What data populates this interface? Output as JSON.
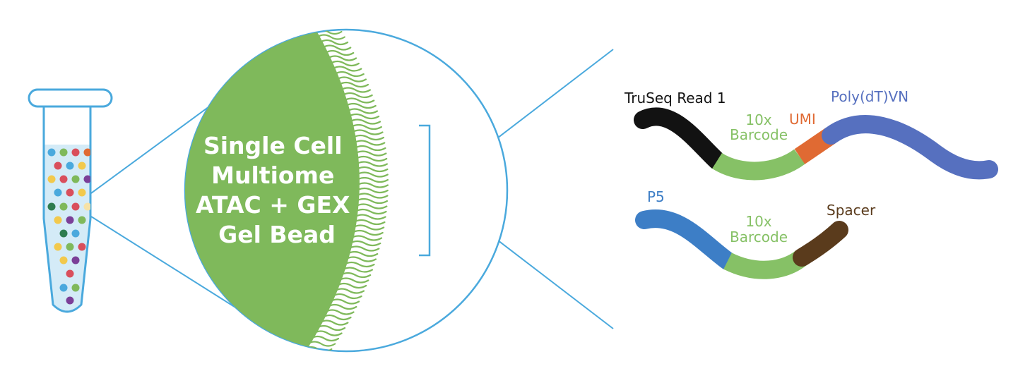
{
  "bead": {
    "title_lines": [
      "Single Cell",
      "Multiome",
      "ATAC + GEX",
      "Gel Bead"
    ]
  },
  "gex_oligo": {
    "read_label": "TruSeq Read 1",
    "barcode_line1": "10x",
    "barcode_line2": "Barcode",
    "umi_label": "UMI",
    "polydt_label": "Poly(dT)VN"
  },
  "atac_oligo": {
    "p5_label": "P5",
    "barcode_line1": "10x",
    "barcode_line2": "Barcode",
    "spacer_label": "Spacer"
  },
  "colors": {
    "outline_blue": "#4aa9dd",
    "bead_green": "#7fb95b",
    "tube_fill": "#d4ebf7",
    "truseq_black": "#121212",
    "barcode_green": "#86c166",
    "umi_orange": "#e06a33",
    "polydt_blue": "#5670bf",
    "p5_blue": "#3d7ec6",
    "spacer_brown": "#5a3b1c"
  }
}
